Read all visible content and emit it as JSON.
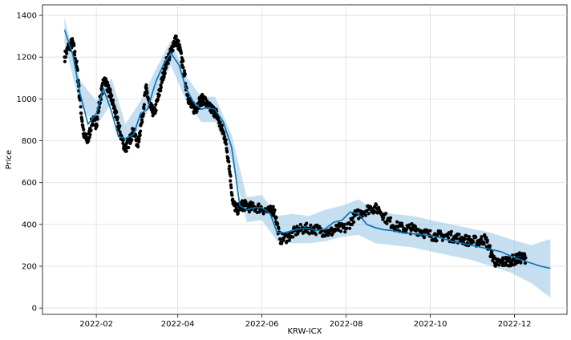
{
  "chart_data": {
    "type": "line",
    "title": "",
    "xlabel": "KRW-ICX",
    "ylabel": "Price",
    "xlim": [
      "2021-12-24",
      "2023-01-08"
    ],
    "ylim": [
      -30,
      1450
    ],
    "grid": true,
    "x_ticks": [
      "2022-02",
      "2022-04",
      "2022-06",
      "2022-08",
      "2022-10",
      "2022-12"
    ],
    "y_ticks": [
      0,
      200,
      400,
      600,
      800,
      1000,
      1200,
      1400
    ],
    "colors": {
      "observed": "#000000",
      "forecast": "#0072B2",
      "uncertainty": "#97c5e4"
    },
    "series": [
      {
        "role": "forecast",
        "x": [
          "2022-01-09",
          "2022-01-15",
          "2022-01-20",
          "2022-01-26",
          "2022-02-01",
          "2022-02-06",
          "2022-02-12",
          "2022-02-17",
          "2022-02-22",
          "2022-02-28",
          "2022-03-05",
          "2022-03-10",
          "2022-03-16",
          "2022-03-22",
          "2022-03-27",
          "2022-04-02",
          "2022-04-07",
          "2022-04-12",
          "2022-04-18",
          "2022-04-23",
          "2022-04-28",
          "2022-05-04",
          "2022-05-10",
          "2022-05-16",
          "2022-05-21",
          "2022-05-26",
          "2022-06-01",
          "2022-06-07",
          "2022-06-12",
          "2022-06-17",
          "2022-06-23",
          "2022-06-29",
          "2022-07-05",
          "2022-07-11",
          "2022-07-17",
          "2022-07-23",
          "2022-07-29",
          "2022-08-04",
          "2022-08-10",
          "2022-08-16",
          "2022-08-22",
          "2022-08-28",
          "2022-09-04",
          "2022-09-11",
          "2022-09-18",
          "2022-09-26",
          "2022-10-02",
          "2022-10-09",
          "2022-10-16",
          "2022-10-24",
          "2022-10-31",
          "2022-11-07",
          "2022-11-14",
          "2022-11-21",
          "2022-11-28",
          "2022-12-06",
          "2022-12-13",
          "2022-12-20",
          "2022-12-27"
        ],
        "y": [
          1330,
          1210,
          1030,
          880,
          930,
          1050,
          940,
          820,
          810,
          830,
          930,
          950,
          1080,
          1170,
          1220,
          1160,
          1050,
          990,
          950,
          960,
          950,
          890,
          770,
          490,
          470,
          480,
          480,
          450,
          360,
          360,
          370,
          380,
          380,
          370,
          380,
          410,
          420,
          460,
          450,
          400,
          385,
          375,
          370,
          360,
          355,
          350,
          345,
          335,
          320,
          310,
          300,
          290,
          280,
          270,
          250,
          230,
          215,
          200,
          190
        ]
      },
      {
        "role": "uncertainty",
        "x": [
          "2022-01-09",
          "2022-01-20",
          "2022-02-01",
          "2022-02-12",
          "2022-02-22",
          "2022-03-05",
          "2022-03-16",
          "2022-03-27",
          "2022-04-07",
          "2022-04-18",
          "2022-04-28",
          "2022-05-10",
          "2022-05-21",
          "2022-06-01",
          "2022-06-12",
          "2022-06-23",
          "2022-07-05",
          "2022-07-17",
          "2022-07-29",
          "2022-08-10",
          "2022-08-22",
          "2022-09-04",
          "2022-09-18",
          "2022-10-02",
          "2022-10-16",
          "2022-10-31",
          "2022-11-14",
          "2022-11-28",
          "2022-12-13",
          "2022-12-27"
        ],
        "upper": [
          1390,
          1090,
          990,
          1100,
          880,
          990,
          1140,
          1280,
          1110,
          1010,
          1010,
          830,
          530,
          540,
          440,
          450,
          440,
          470,
          490,
          520,
          470,
          450,
          440,
          420,
          400,
          380,
          360,
          330,
          300,
          330
        ],
        "lower": [
          1270,
          970,
          870,
          980,
          760,
          870,
          1020,
          1160,
          990,
          890,
          890,
          710,
          410,
          420,
          320,
          310,
          310,
          320,
          340,
          350,
          310,
          300,
          290,
          270,
          250,
          230,
          200,
          170,
          120,
          50
        ]
      },
      {
        "role": "observed",
        "x": [
          "2022-01-09",
          "2022-01-12",
          "2022-01-15",
          "2022-01-18",
          "2022-01-20",
          "2022-01-23",
          "2022-01-26",
          "2022-01-29",
          "2022-02-01",
          "2022-02-04",
          "2022-02-07",
          "2022-02-10",
          "2022-02-13",
          "2022-02-16",
          "2022-02-19",
          "2022-02-22",
          "2022-02-25",
          "2022-02-28",
          "2022-03-03",
          "2022-03-06",
          "2022-03-09",
          "2022-03-12",
          "2022-03-15",
          "2022-03-18",
          "2022-03-21",
          "2022-03-24",
          "2022-03-27",
          "2022-03-30",
          "2022-04-02",
          "2022-04-05",
          "2022-04-08",
          "2022-04-11",
          "2022-04-14",
          "2022-04-17",
          "2022-04-20",
          "2022-04-23",
          "2022-04-26",
          "2022-04-29",
          "2022-05-02",
          "2022-05-05",
          "2022-05-08",
          "2022-05-11",
          "2022-05-14",
          "2022-05-17",
          "2022-05-20",
          "2022-05-25",
          "2022-05-31",
          "2022-06-06",
          "2022-06-10",
          "2022-06-14",
          "2022-06-20",
          "2022-06-26",
          "2022-07-02",
          "2022-07-08",
          "2022-07-14",
          "2022-07-20",
          "2022-07-26",
          "2022-08-01",
          "2022-08-07",
          "2022-08-13",
          "2022-08-19",
          "2022-08-25",
          "2022-08-31",
          "2022-09-06",
          "2022-09-12",
          "2022-09-18",
          "2022-09-24",
          "2022-09-30",
          "2022-10-06",
          "2022-10-12",
          "2022-10-18",
          "2022-10-24",
          "2022-10-30",
          "2022-11-05",
          "2022-11-10",
          "2022-11-14",
          "2022-11-18",
          "2022-11-22",
          "2022-11-26",
          "2022-12-01",
          "2022-12-05",
          "2022-12-09"
        ],
        "y": [
          1200,
          1250,
          1270,
          1150,
          1000,
          820,
          800,
          900,
          880,
          1010,
          1100,
          1040,
          980,
          900,
          820,
          760,
          800,
          850,
          780,
          900,
          1050,
          960,
          930,
          1010,
          1100,
          1180,
          1220,
          1290,
          1250,
          1150,
          1020,
          960,
          950,
          990,
          1000,
          960,
          950,
          930,
          870,
          820,
          700,
          500,
          470,
          490,
          490,
          480,
          480,
          460,
          470,
          330,
          340,
          370,
          380,
          380,
          370,
          360,
          380,
          380,
          440,
          460,
          480,
          470,
          420,
          390,
          380,
          380,
          370,
          350,
          345,
          345,
          340,
          330,
          320,
          320,
          330,
          260,
          210,
          220,
          225,
          230,
          240,
          240
        ]
      }
    ]
  }
}
